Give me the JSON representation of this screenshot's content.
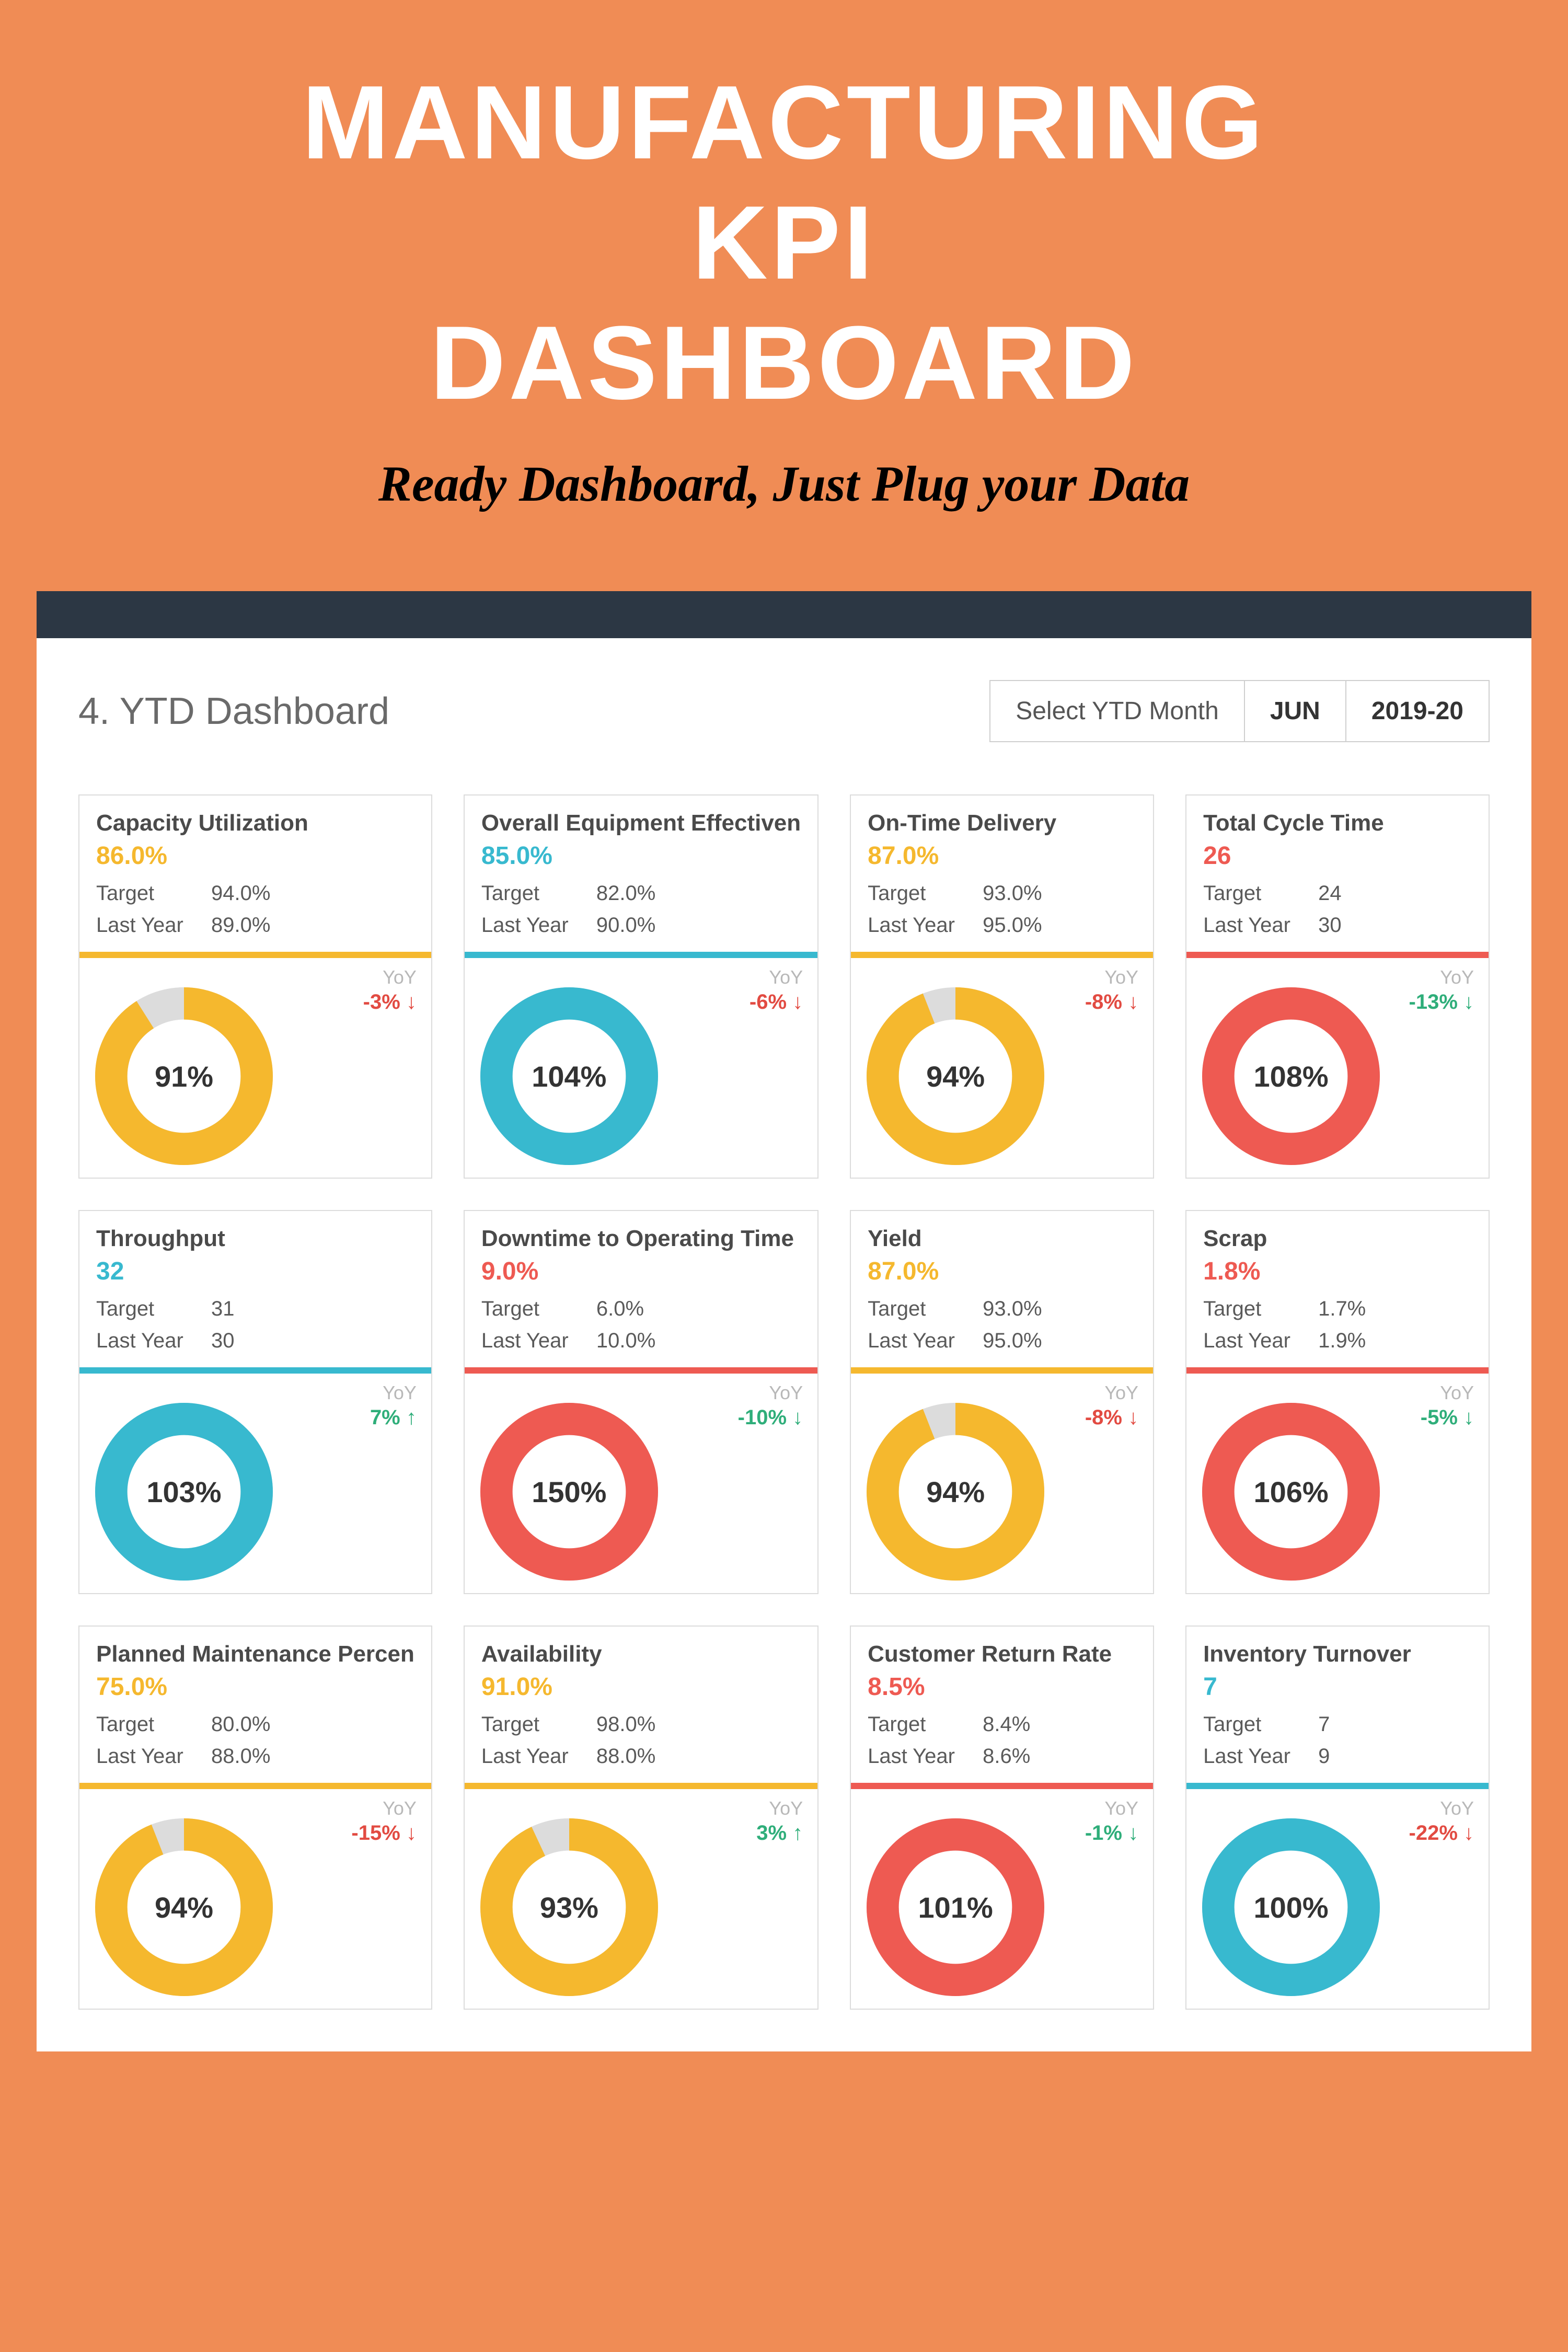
{
  "colors": {
    "page_bg": "#f08c55",
    "hero_title": "#ffffff",
    "hero_sub": "#000000",
    "topbar": "#2c3744",
    "panel_bg": "#ffffff",
    "card_border": "#dcdcdc",
    "text_muted": "#6a6a6a",
    "yoy_label": "#b8b8b8",
    "donut_track": "#dcdcdc",
    "accent_yellow": "#f5b82e",
    "accent_teal": "#38b9cf",
    "accent_red": "#ee5a52",
    "yoy_green": "#2fae7a",
    "yoy_red": "#e24b42"
  },
  "hero": {
    "line1": "MANUFACTURING",
    "line2": "KPI",
    "line3": "DASHBOARD",
    "subtitle": "Ready Dashboard, Just Plug your Data"
  },
  "header": {
    "title": "4. YTD Dashboard",
    "selector_label": "Select YTD Month",
    "month": "JUN",
    "year": "2019-20"
  },
  "donut_style": {
    "type": "donut",
    "outer_radius": 160,
    "thickness": 58,
    "track_color": "#dcdcdc",
    "center_fontsize": 56
  },
  "cards": [
    {
      "title": "Capacity Utilization",
      "value": "86.0%",
      "value_color": "#f5b82e",
      "target_label": "Target",
      "target": "94.0%",
      "last_year_label": "Last Year",
      "last_year": "89.0%",
      "divider_color": "#f5b82e",
      "donut": {
        "percent": 91,
        "fill_color": "#f5b82e",
        "center_text": "91%"
      },
      "yoy_label": "YoY",
      "yoy_text": "-3% ↓",
      "yoy_color": "#e24b42"
    },
    {
      "title": "Overall Equipment Effectiven",
      "value": "85.0%",
      "value_color": "#38b9cf",
      "target_label": "Target",
      "target": "82.0%",
      "last_year_label": "Last Year",
      "last_year": "90.0%",
      "divider_color": "#38b9cf",
      "donut": {
        "percent": 100,
        "fill_color": "#38b9cf",
        "center_text": "104%"
      },
      "yoy_label": "YoY",
      "yoy_text": "-6% ↓",
      "yoy_color": "#e24b42"
    },
    {
      "title": "On-Time Delivery",
      "value": "87.0%",
      "value_color": "#f5b82e",
      "target_label": "Target",
      "target": "93.0%",
      "last_year_label": "Last Year",
      "last_year": "95.0%",
      "divider_color": "#f5b82e",
      "donut": {
        "percent": 94,
        "fill_color": "#f5b82e",
        "center_text": "94%"
      },
      "yoy_label": "YoY",
      "yoy_text": "-8% ↓",
      "yoy_color": "#e24b42"
    },
    {
      "title": "Total Cycle Time",
      "value": "26",
      "value_color": "#ee5a52",
      "target_label": "Target",
      "target": "24",
      "last_year_label": "Last Year",
      "last_year": "30",
      "divider_color": "#ee5a52",
      "donut": {
        "percent": 100,
        "fill_color": "#ee5a52",
        "center_text": "108%"
      },
      "yoy_label": "YoY",
      "yoy_text": "-13% ↓",
      "yoy_color": "#2fae7a"
    },
    {
      "title": "Throughput",
      "value": "32",
      "value_color": "#38b9cf",
      "target_label": "Target",
      "target": "31",
      "last_year_label": "Last Year",
      "last_year": "30",
      "divider_color": "#38b9cf",
      "donut": {
        "percent": 100,
        "fill_color": "#38b9cf",
        "center_text": "103%"
      },
      "yoy_label": "YoY",
      "yoy_text": "7% ↑",
      "yoy_color": "#2fae7a"
    },
    {
      "title": "Downtime to Operating Time",
      "value": "9.0%",
      "value_color": "#ee5a52",
      "target_label": "Target",
      "target": "6.0%",
      "last_year_label": "Last Year",
      "last_year": "10.0%",
      "divider_color": "#ee5a52",
      "donut": {
        "percent": 100,
        "fill_color": "#ee5a52",
        "center_text": "150%"
      },
      "yoy_label": "YoY",
      "yoy_text": "-10% ↓",
      "yoy_color": "#2fae7a"
    },
    {
      "title": "Yield",
      "value": "87.0%",
      "value_color": "#f5b82e",
      "target_label": "Target",
      "target": "93.0%",
      "last_year_label": "Last Year",
      "last_year": "95.0%",
      "divider_color": "#f5b82e",
      "donut": {
        "percent": 94,
        "fill_color": "#f5b82e",
        "center_text": "94%"
      },
      "yoy_label": "YoY",
      "yoy_text": "-8% ↓",
      "yoy_color": "#e24b42"
    },
    {
      "title": "Scrap",
      "value": "1.8%",
      "value_color": "#ee5a52",
      "target_label": "Target",
      "target": "1.7%",
      "last_year_label": "Last Year",
      "last_year": "1.9%",
      "divider_color": "#ee5a52",
      "donut": {
        "percent": 100,
        "fill_color": "#ee5a52",
        "center_text": "106%"
      },
      "yoy_label": "YoY",
      "yoy_text": "-5% ↓",
      "yoy_color": "#2fae7a"
    },
    {
      "title": "Planned Maintenance Percen",
      "value": "75.0%",
      "value_color": "#f5b82e",
      "target_label": "Target",
      "target": "80.0%",
      "last_year_label": "Last Year",
      "last_year": "88.0%",
      "divider_color": "#f5b82e",
      "donut": {
        "percent": 94,
        "fill_color": "#f5b82e",
        "center_text": "94%"
      },
      "yoy_label": "YoY",
      "yoy_text": "-15% ↓",
      "yoy_color": "#e24b42"
    },
    {
      "title": "Availability",
      "value": "91.0%",
      "value_color": "#f5b82e",
      "target_label": "Target",
      "target": "98.0%",
      "last_year_label": "Last Year",
      "last_year": "88.0%",
      "divider_color": "#f5b82e",
      "donut": {
        "percent": 93,
        "fill_color": "#f5b82e",
        "center_text": "93%"
      },
      "yoy_label": "YoY",
      "yoy_text": "3% ↑",
      "yoy_color": "#2fae7a"
    },
    {
      "title": "Customer Return Rate",
      "value": "8.5%",
      "value_color": "#ee5a52",
      "target_label": "Target",
      "target": "8.4%",
      "last_year_label": "Last Year",
      "last_year": "8.6%",
      "divider_color": "#ee5a52",
      "donut": {
        "percent": 100,
        "fill_color": "#ee5a52",
        "center_text": "101%"
      },
      "yoy_label": "YoY",
      "yoy_text": "-1% ↓",
      "yoy_color": "#2fae7a"
    },
    {
      "title": "Inventory Turnover",
      "value": "7",
      "value_color": "#38b9cf",
      "target_label": "Target",
      "target": "7",
      "last_year_label": "Last Year",
      "last_year": "9",
      "divider_color": "#38b9cf",
      "donut": {
        "percent": 100,
        "fill_color": "#38b9cf",
        "center_text": "100%"
      },
      "yoy_label": "YoY",
      "yoy_text": "-22% ↓",
      "yoy_color": "#e24b42"
    }
  ]
}
